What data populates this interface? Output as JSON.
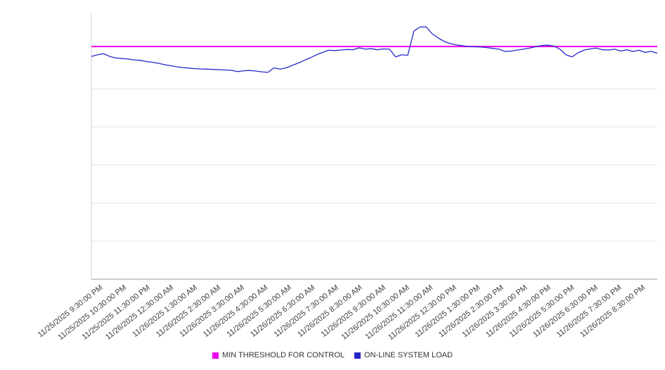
{
  "chart": {
    "background": "#ffffff",
    "axis_color": "#999999",
    "gridline_color": "#e6e6e6",
    "left_axis_color": "#d0d0d0",
    "legend": [
      {
        "label": "MIN THRESHOLD FOR CONTROL",
        "color": "#ee00ee"
      },
      {
        "label": "ON-LINE SYSTEM LOAD",
        "color": "#2626cc"
      }
    ]
  },
  "chart_data": {
    "type": "line",
    "title": "",
    "xlabel": "",
    "ylabel": "",
    "ylim": [
      0,
      100
    ],
    "y_axis_labels_visible": false,
    "grid": true,
    "gridline_divisions": 7,
    "legend_position": "bottom",
    "x_start": "11/25/2025 9:30:00 PM",
    "sample_interval_minutes": 15,
    "x_tick_labels": [
      "11/25/2025 9:30:00 PM",
      "11/25/2025 10:30:00 PM",
      "11/25/2025 11:30:00 PM",
      "11/26/2025 12:30:00 AM",
      "11/26/2025 1:30:00 AM",
      "11/26/2025 2:30:00 AM",
      "11/26/2025 3:30:00 AM",
      "11/26/2025 4:30:00 AM",
      "11/26/2025 5:30:00 AM",
      "11/26/2025 6:30:00 AM",
      "11/26/2025 7:30:00 AM",
      "11/26/2025 8:30:00 AM",
      "11/26/2025 9:30:00 AM",
      "11/26/2025 10:30:00 AM",
      "11/26/2025 11:30:00 AM",
      "11/26/2025 12:30:00 PM",
      "11/26/2025 1:30:00 PM",
      "11/26/2025 2:30:00 PM",
      "11/26/2025 3:30:00 PM",
      "11/26/2025 4:30:00 PM",
      "11/26/2025 5:30:00 PM",
      "11/26/2025 6:30:00 PM",
      "11/26/2025 7:30:00 PM",
      "11/26/2025 8:30:00 PM"
    ],
    "series": [
      {
        "name": "MIN THRESHOLD FOR CONTROL",
        "type": "threshold-line",
        "color": "#ee00ee",
        "value": 87.3
      },
      {
        "name": "ON-LINE SYSTEM LOAD",
        "type": "line",
        "color": "#2626cc",
        "values": [
          83.6,
          84.2,
          84.6,
          83.6,
          83.0,
          82.8,
          82.6,
          82.3,
          82.1,
          81.7,
          81.4,
          81.0,
          80.5,
          80.1,
          79.7,
          79.4,
          79.2,
          79.0,
          78.9,
          78.8,
          78.7,
          78.6,
          78.5,
          78.4,
          77.9,
          78.2,
          78.3,
          78.1,
          77.8,
          77.6,
          79.3,
          78.8,
          79.3,
          80.2,
          81.1,
          82.1,
          83.1,
          84.2,
          85.1,
          85.9,
          85.8,
          86.0,
          86.2,
          86.1,
          86.8,
          86.3,
          86.5,
          86.1,
          86.4,
          86.3,
          83.4,
          84.2,
          84.0,
          93.1,
          94.6,
          94.7,
          92.1,
          90.5,
          89.2,
          88.4,
          87.9,
          87.6,
          87.3,
          87.2,
          87.1,
          86.9,
          86.6,
          86.3,
          85.4,
          85.6,
          86.0,
          86.3,
          86.7,
          87.2,
          87.7,
          87.8,
          87.5,
          86.3,
          84.2,
          83.4,
          85.0,
          86.0,
          86.4,
          86.7,
          86.1,
          86.0,
          86.3,
          85.6,
          86.1,
          85.4,
          85.9,
          85.1,
          85.5,
          84.8
        ]
      }
    ]
  }
}
